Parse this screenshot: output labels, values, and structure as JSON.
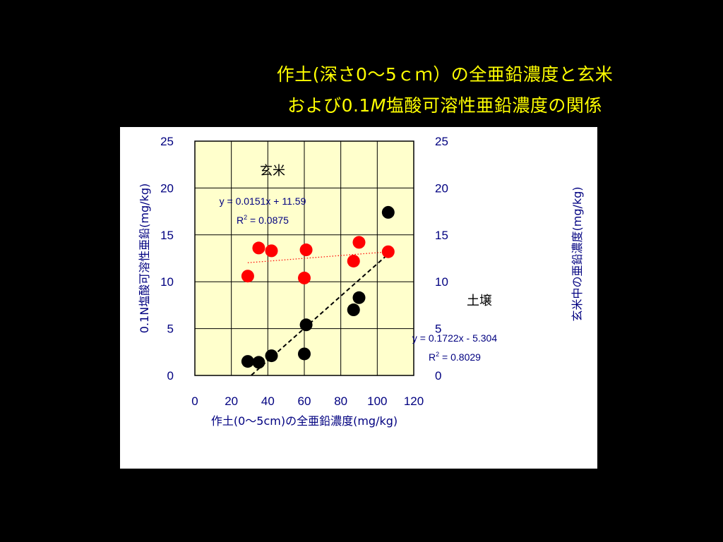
{
  "slide": {
    "title_line1": "作土(深さ0〜5ｃｍ）の全亜鉛濃度と玄米",
    "title_line2_a": "および0.1",
    "title_line2_b": "M",
    "title_line2_c": "塩酸可溶性亜鉛濃度の関係",
    "title_color": "#ffff00",
    "background": "#000000"
  },
  "chart_data": {
    "type": "scatter",
    "title": "",
    "xlabel": "作土(0〜5cm)の全亜鉛濃度(mg/kg)",
    "ylabel_left": "0.1N塩酸可溶性亜鉛(mg/kg)",
    "ylabel_right": "玄米中の亜鉛濃度(mg/kg)",
    "xlim": [
      0,
      120
    ],
    "ylim": [
      0,
      25
    ],
    "xticks": [
      "0",
      "20",
      "40",
      "60",
      "80",
      "100",
      "120"
    ],
    "yticks": [
      "0",
      "5",
      "10",
      "15",
      "20",
      "25"
    ],
    "grid": true,
    "plot_background": "#ffffcc",
    "series": [
      {
        "name": "玄米",
        "color": "#ff0000",
        "x": [
          29,
          35,
          42,
          60,
          61,
          87,
          90,
          106
        ],
        "y": [
          10.6,
          13.6,
          13.3,
          10.4,
          13.4,
          12.2,
          14.2,
          13.2
        ],
        "trendline": {
          "style": "dotted",
          "equation": "y = 0.0151x + 11.59",
          "r2_prefix": "R",
          "r2_sup": "2",
          "r2_value": " = 0.0875",
          "x_range": [
            29,
            106
          ]
        }
      },
      {
        "name": "土壌",
        "color": "#000000",
        "x": [
          29,
          35,
          42,
          60,
          61,
          87,
          90,
          106
        ],
        "y": [
          1.5,
          1.4,
          2.1,
          2.3,
          5.4,
          7.0,
          8.3,
          17.4
        ],
        "trendline": {
          "style": "dashed",
          "equation": "y = 0.1722x - 5.304",
          "r2_prefix": "R",
          "r2_sup": "2",
          "r2_value": " = 0.8029",
          "x_range": [
            31,
            106
          ]
        }
      }
    ]
  }
}
